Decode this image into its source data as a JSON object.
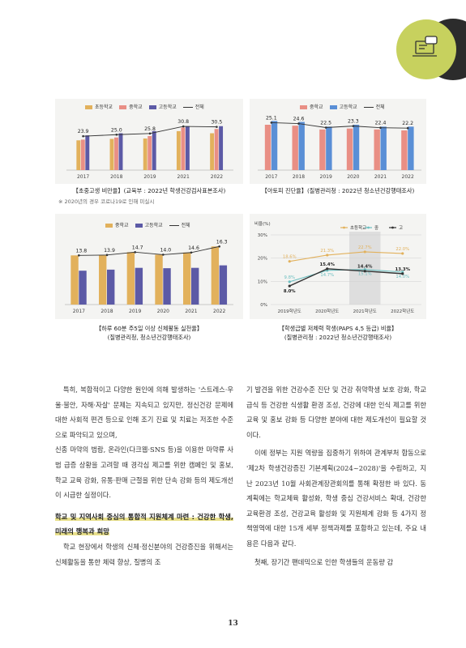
{
  "page_number": "13",
  "colors": {
    "elementary": "#e2b15c",
    "middle": "#e98f85",
    "high": "#5c5aa6",
    "total_line": "#333333",
    "accent_badge": "#c7d15e",
    "badge_dark": "#2c2c2c"
  },
  "charts": [
    {
      "caption": "【초중고생 비만율】(교육부 : 2022년 학생건강검사표본조사)",
      "note": "※ 2020년의 경우 코로나19로 인해 미실시",
      "legend": [
        "초등학교",
        "중학교",
        "고등학교",
        "전체"
      ]
    },
    {
      "caption": "【아토피 진단율】(질병관리청 : 2022년 청소년건강행태조사)",
      "legend": [
        "중학교",
        "고등학교",
        "전체"
      ]
    },
    {
      "caption_line1": "【하루 60분 주5일 이상 신체활동 실천율】",
      "caption_line2": "(질병관리청, 청소년건강행태조사)",
      "legend": [
        "중학교",
        "고등학교",
        "전체"
      ]
    },
    {
      "caption_line1": "【학생급별 저체력 학생(PAPS 4,5 등급) 비율】",
      "caption_line2": "(질병관리청 : 2022년 청소년건강행태조사)",
      "y_unit": "비율(%)",
      "legend": [
        "초등학교",
        "중",
        "고"
      ]
    }
  ],
  "chart_data": [
    {
      "type": "bar",
      "categories": [
        "2017",
        "2018",
        "2019",
        "2021",
        "2022"
      ],
      "series": [
        {
          "name": "초등학교",
          "values": [
            21.0,
            22.0,
            22.3,
            27.5,
            26.0
          ]
        },
        {
          "name": "중학교",
          "values": [
            21.5,
            23.0,
            24.0,
            30.0,
            29.0
          ]
        },
        {
          "name": "고등학교",
          "values": [
            24.5,
            26.0,
            27.5,
            31.0,
            31.0
          ]
        },
        {
          "name": "전체",
          "values": [
            23.9,
            25.0,
            25.8,
            30.8,
            30.5
          ]
        }
      ],
      "data_labels": [
        "23.9",
        "25.0",
        "25.8",
        "30.8",
        "30.5"
      ],
      "ylim": [
        0,
        40
      ]
    },
    {
      "type": "bar",
      "categories": [
        "2017",
        "2018",
        "2019",
        "2020",
        "2021",
        "2022"
      ],
      "series": [
        {
          "name": "중학교",
          "values": [
            24.0,
            23.5,
            21.5,
            22.0,
            21.5,
            21.0
          ]
        },
        {
          "name": "고등학교",
          "values": [
            26.0,
            25.5,
            23.0,
            24.0,
            23.0,
            23.0
          ]
        },
        {
          "name": "전체",
          "values": [
            25.1,
            24.6,
            22.5,
            23.3,
            22.4,
            22.2
          ]
        }
      ],
      "data_labels": [
        "25.1",
        "24.6",
        "22.5",
        "23.3",
        "22.4",
        "22.2"
      ],
      "ylim": [
        0,
        30
      ]
    },
    {
      "type": "bar",
      "categories": [
        "2017",
        "2018",
        "2019",
        "2020",
        "2021",
        "2022"
      ],
      "series": [
        {
          "name": "중학교",
          "values": [
            13.8,
            13.9,
            14.7,
            14.0,
            14.6,
            16.3
          ]
        },
        {
          "name": "고등학교",
          "values": [
            9.5,
            9.8,
            10.3,
            10.2,
            10.3,
            11.0
          ]
        },
        {
          "name": "전체",
          "values": [
            13.8,
            13.9,
            14.7,
            14.0,
            14.6,
            16.3
          ]
        }
      ],
      "data_labels": [
        "13.8",
        "13.9",
        "14.7",
        "14.0",
        "14.6",
        "16.3"
      ],
      "ylim": [
        0,
        20
      ]
    },
    {
      "type": "line",
      "categories": [
        "2019학년도",
        "2020학년도",
        "2021학년도",
        "2022학년도"
      ],
      "y_ticks": [
        "0%",
        "10%",
        "20%",
        "30%"
      ],
      "ylim": [
        0,
        30
      ],
      "series": [
        {
          "name": "초등학교",
          "values": [
            18.6,
            21.3,
            22.7,
            22.0
          ],
          "labels": [
            "18.6%",
            "21.3%",
            "22.7%",
            "22.0%"
          ]
        },
        {
          "name": "중",
          "values": [
            9.8,
            14.7,
            15.1,
            14.0
          ],
          "labels": [
            "9.8%",
            "14.7%",
            "15.1%",
            "14.0%"
          ]
        },
        {
          "name": "고",
          "values": [
            8.0,
            15.4,
            14.4,
            13.3
          ],
          "labels": [
            "8.0%",
            "15.4%",
            "14.4%",
            "13.3%"
          ]
        }
      ]
    }
  ],
  "left_column": {
    "para1": "특히, 복합적이고 다양한 원인에 의해 발생하는 '스트레스·우울·불안, 자해·자살' 문제는 지속되고 있지만, 정신건강 문제에 대한 사회적 편견 등으로 인해 조기 진료 및 치료는 저조한 수준으로 파악되고 있으며,",
    "para2": "신종 마약의 범람, 온라인(다크웹·SNS 등)을 이용한 마약류 사범 급증 상황을 고려할 때 경각심 제고를 위한 캠페인 및 홍보, 학교 교육 강화, 유통·판매 근절을 위한 단속 강화 등의 제도개선이 시급한 실정이다.",
    "heading": "학교 및 지역사회 중심의 통합적 지원체계 마련 : 건강한 학생, 미래의 행복과 희망",
    "para3": "학교 현장에서 학생의 신체·정신분야의 건강증진을 위해서는 신체활동을 통한 체력 향상, 질병의 조"
  },
  "right_column": {
    "para1": "기 발견을 위한 건강수준 진단 및 건강 취약학생 보호 강화, 학교급식 등 건강한 식생활 환경 조성, 건강에 대한 인식 제고를 위한 교육 및 홍보 강화 등 다양한 분야에 대한 제도개선이 필요할 것이다.",
    "para2": "이에 정부는 지원 역량을 집중하기 위하여 관계부처 합동으로 '제2차 학생건강증진 기본계획(2024~2028)'을 수립하고, 지난 2023년 10월 사회관계장관회의를 통해 확정한 바 있다. 동 계획에는 학교체육 활성화, 학생 중심 건강서비스 확대, 건강한 교육환경 조성, 건강교육 활성화 및 지원체계 강화 등 4가지 정책영역에 대한 15개 세부 정책과제를 포함하고 있는데, 주요 내용은 다음과 같다.",
    "para3": "첫째, 장기간 팬데믹으로 인한 학생들의 운동량 감"
  }
}
